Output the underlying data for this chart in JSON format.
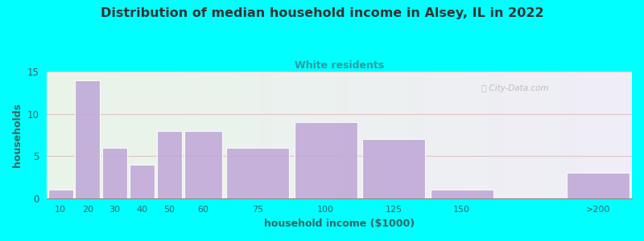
{
  "title": "Distribution of median household income in Alsey, IL in 2022",
  "subtitle": "White residents",
  "xlabel": "household income ($1000)",
  "ylabel": "households",
  "background_outer": "#00FFFF",
  "bar_color": "#C0A8D8",
  "bar_edge_color": "#ffffff",
  "title_color": "#333333",
  "subtitle_color": "#339999",
  "axis_label_color": "#336666",
  "tick_color": "#336666",
  "grid_color": "#e0c0c0",
  "categories": [
    "10",
    "20",
    "30",
    "40",
    "50",
    "60",
    "75",
    "100",
    "125",
    "150",
    ">200"
  ],
  "values": [
    1,
    14,
    6,
    4,
    8,
    8,
    6,
    9,
    7,
    1,
    3
  ],
  "bar_lefts": [
    10,
    20,
    30,
    40,
    50,
    60,
    75,
    100,
    125,
    150,
    200
  ],
  "bar_widths": [
    10,
    10,
    10,
    10,
    10,
    15,
    25,
    25,
    25,
    25,
    25
  ],
  "ylim": [
    0,
    15
  ],
  "yticks": [
    0,
    5,
    10,
    15
  ],
  "watermark": "City-Data.com"
}
